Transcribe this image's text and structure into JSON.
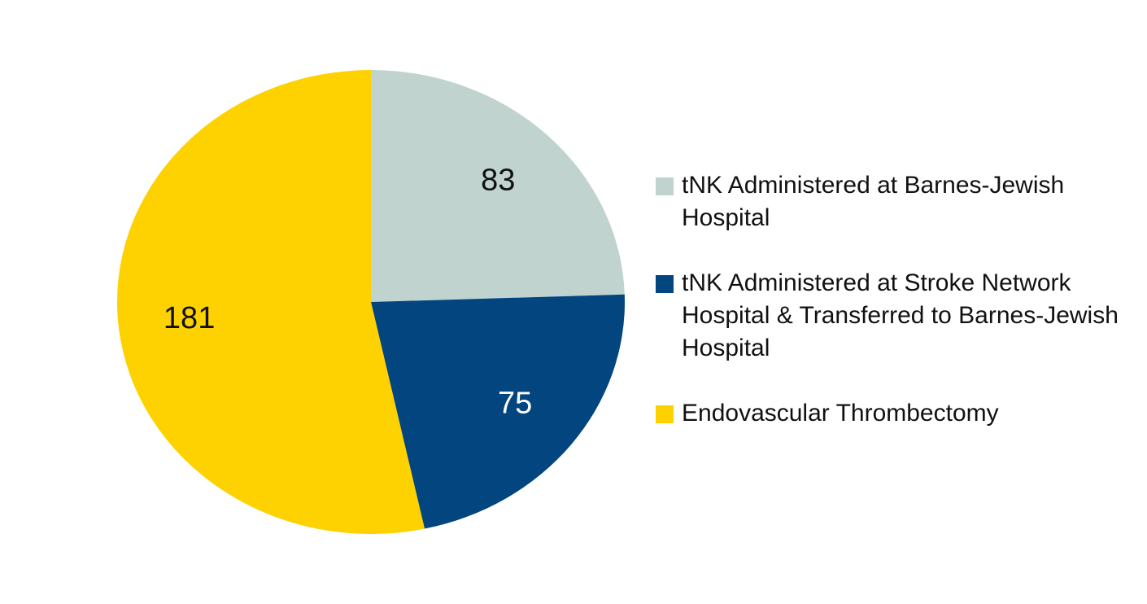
{
  "chart_data": {
    "type": "pie",
    "categories": [
      "tNK Administered at Barnes-Jewish Hospital",
      "tNK Administered at Stroke Network Hospital & Transferred to Barnes-Jewish Hospital",
      "Endovascular Thrombectomy"
    ],
    "values": [
      83,
      75,
      181
    ],
    "colors": [
      "#c0d3cf",
      "#03457f",
      "#fed100"
    ],
    "legend": "right"
  }
}
